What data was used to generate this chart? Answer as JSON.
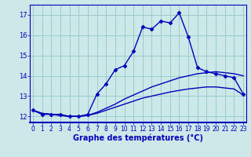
{
  "xlabel": "Graphe des températures (°C)",
  "bg_color": "#cce8e8",
  "line_color": "#0000bb",
  "grid_color": "#99cccc",
  "hours": [
    0,
    1,
    2,
    3,
    4,
    5,
    6,
    7,
    8,
    9,
    10,
    11,
    12,
    13,
    14,
    15,
    16,
    17,
    18,
    19,
    20,
    21,
    22,
    23
  ],
  "temp_main": [
    12.3,
    12.1,
    12.1,
    12.1,
    12.0,
    12.0,
    12.1,
    13.1,
    13.6,
    14.3,
    14.5,
    15.2,
    16.4,
    16.3,
    16.7,
    16.6,
    17.1,
    15.9,
    14.4,
    14.2,
    14.1,
    14.0,
    13.9,
    13.1
  ],
  "temp_line2": [
    12.3,
    12.15,
    12.1,
    12.05,
    12.0,
    12.0,
    12.05,
    12.2,
    12.4,
    12.6,
    12.85,
    13.05,
    13.25,
    13.45,
    13.6,
    13.75,
    13.9,
    14.0,
    14.1,
    14.15,
    14.2,
    14.15,
    14.1,
    14.0
  ],
  "temp_line3": [
    12.3,
    12.15,
    12.1,
    12.05,
    12.0,
    12.0,
    12.05,
    12.15,
    12.3,
    12.45,
    12.6,
    12.75,
    12.9,
    13.0,
    13.1,
    13.2,
    13.28,
    13.35,
    13.4,
    13.45,
    13.45,
    13.4,
    13.35,
    13.05
  ],
  "ylim": [
    11.7,
    17.5
  ],
  "yticks": [
    12,
    13,
    14,
    15,
    16,
    17
  ],
  "xticks": [
    0,
    1,
    2,
    3,
    4,
    5,
    6,
    7,
    8,
    9,
    10,
    11,
    12,
    13,
    14,
    15,
    16,
    17,
    18,
    19,
    20,
    21,
    22,
    23
  ],
  "marker": "D",
  "markersize": 2.5,
  "linewidth": 1.0
}
